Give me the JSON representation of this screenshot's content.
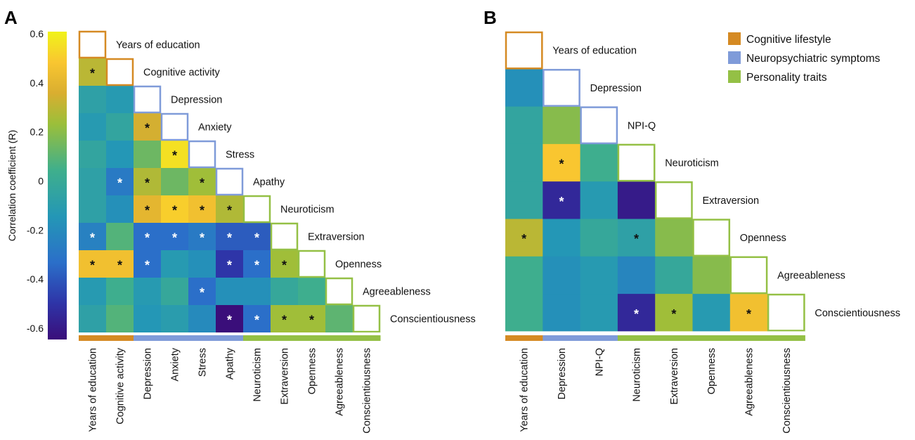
{
  "panels": {
    "a": "A",
    "b": "B"
  },
  "colors": {
    "cognitive": "#D58A23",
    "neuro": "#7F9BD9",
    "personality": "#94C045"
  },
  "legend": [
    {
      "key": "cognitive",
      "label": "Cognitive lifestyle"
    },
    {
      "key": "neuro",
      "label": "Neuropsychiatric symptoms"
    },
    {
      "key": "personality",
      "label": "Personality traits"
    }
  ],
  "colorbar": {
    "label": "Correlation coefficient (R)",
    "min": -0.6,
    "max": 0.6,
    "ticks": [
      "0.6",
      "0.4",
      "0.2",
      "0",
      "-0.2",
      "-0.4",
      "-0.6"
    ]
  },
  "chart_data": [
    {
      "type": "heatmap",
      "panel": "A",
      "variables": [
        "Years of education",
        "Cognitive activity",
        "Depression",
        "Anxiety",
        "Stress",
        "Apathy",
        "Neuroticism",
        "Extraversion",
        "Openness",
        "Agreeableness",
        "Conscientiousness"
      ],
      "groups": [
        "cognitive",
        "cognitive",
        "neuro",
        "neuro",
        "neuro",
        "neuro",
        "personality",
        "personality",
        "personality",
        "personality",
        "personality"
      ],
      "values": [
        [],
        [
          0.3
        ],
        [
          -0.05,
          -0.1
        ],
        [
          -0.1,
          -0.02,
          0.35
        ],
        [
          -0.02,
          -0.12,
          0.15,
          0.55
        ],
        [
          -0.05,
          -0.25,
          0.28,
          0.15,
          0.25
        ],
        [
          -0.05,
          -0.15,
          0.4,
          0.5,
          0.45,
          0.28
        ],
        [
          -0.22,
          0.1,
          -0.3,
          -0.3,
          -0.25,
          -0.35,
          -0.35
        ],
        [
          0.45,
          0.45,
          -0.3,
          -0.1,
          -0.15,
          -0.45,
          -0.3,
          0.25
        ],
        [
          -0.1,
          0.05,
          -0.1,
          0.0,
          -0.3,
          -0.15,
          -0.15,
          0.0,
          0.05
        ],
        [
          -0.05,
          0.1,
          -0.12,
          -0.08,
          -0.18,
          -0.6,
          -0.3,
          0.25,
          0.25,
          0.12
        ]
      ],
      "significant": [
        [],
        [
          true
        ],
        [
          false,
          false
        ],
        [
          false,
          false,
          true
        ],
        [
          false,
          false,
          false,
          true
        ],
        [
          false,
          true,
          true,
          false,
          true
        ],
        [
          false,
          false,
          true,
          true,
          true,
          true
        ],
        [
          true,
          false,
          true,
          true,
          true,
          true,
          true
        ],
        [
          true,
          true,
          true,
          false,
          false,
          true,
          true,
          true
        ],
        [
          false,
          false,
          false,
          false,
          true,
          false,
          false,
          false,
          false
        ],
        [
          false,
          false,
          false,
          false,
          false,
          true,
          true,
          true,
          true,
          false
        ]
      ]
    },
    {
      "type": "heatmap",
      "panel": "B",
      "variables": [
        "Years of education",
        "Depression",
        "NPI-Q",
        "Neuroticism",
        "Extraversion",
        "Openness",
        "Agreeableness",
        "Conscientiousness"
      ],
      "groups": [
        "cognitive",
        "neuro",
        "neuro",
        "personality",
        "personality",
        "personality",
        "personality",
        "personality"
      ],
      "values": [
        [],
        [
          -0.15
        ],
        [
          -0.02,
          0.2
        ],
        [
          -0.02,
          0.48,
          0.05
        ],
        [
          -0.02,
          -0.5,
          -0.1,
          -0.55
        ],
        [
          0.3,
          -0.12,
          0.0,
          -0.05,
          0.2
        ],
        [
          0.05,
          -0.15,
          -0.1,
          -0.2,
          0.0,
          0.2
        ],
        [
          0.05,
          -0.15,
          -0.1,
          -0.5,
          0.25,
          -0.1,
          0.45
        ]
      ],
      "significant": [
        [],
        [
          false
        ],
        [
          false,
          false
        ],
        [
          false,
          true,
          false
        ],
        [
          false,
          true,
          false,
          false
        ],
        [
          true,
          false,
          false,
          true,
          false
        ],
        [
          false,
          false,
          false,
          false,
          false,
          false
        ],
        [
          false,
          false,
          false,
          true,
          true,
          false,
          true
        ]
      ]
    }
  ]
}
